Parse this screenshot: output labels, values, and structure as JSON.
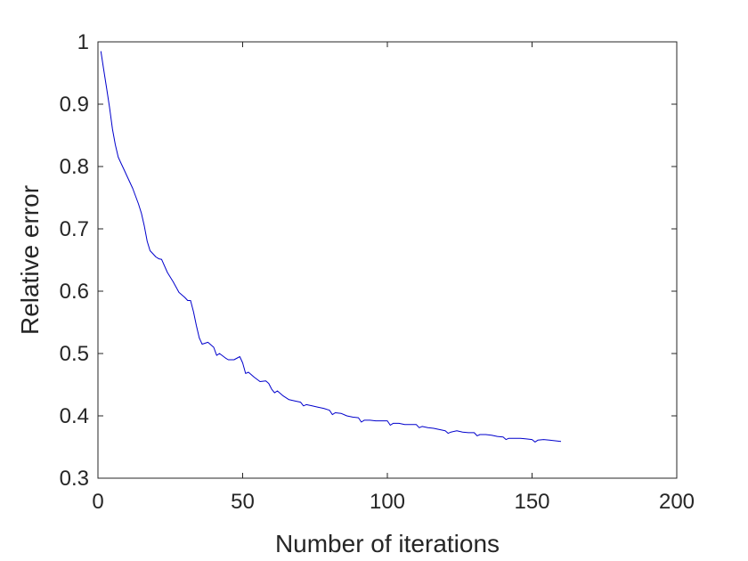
{
  "chart_data": {
    "type": "line",
    "title": "",
    "xlabel": "Number of iterations",
    "ylabel": "Relative error",
    "xlim": [
      0,
      200
    ],
    "ylim": [
      0.3,
      1
    ],
    "xticks": [
      "0",
      "50",
      "100",
      "150",
      "200"
    ],
    "yticks": [
      "0.3",
      "0.4",
      "0.5",
      "0.6",
      "0.7",
      "0.8",
      "0.9",
      "1"
    ],
    "grid": false,
    "legend": "none",
    "line_color": "#0000cc",
    "series": [
      {
        "x": [
          1,
          2,
          3,
          4,
          5,
          6,
          7,
          8,
          9,
          10,
          12,
          14,
          15,
          16,
          17,
          18,
          19,
          20,
          21,
          22,
          24,
          26,
          28,
          30,
          31,
          32,
          33,
          34,
          35,
          36,
          38,
          40,
          41,
          42,
          44,
          45,
          47,
          49,
          50,
          51,
          52,
          54,
          56,
          58,
          59,
          60,
          61,
          62,
          64,
          66,
          68,
          70,
          71,
          72,
          74,
          76,
          78,
          80,
          81,
          82,
          84,
          86,
          88,
          90,
          91,
          92,
          94,
          96,
          98,
          100,
          101,
          102,
          104,
          106,
          108,
          110,
          111,
          112,
          114,
          116,
          118,
          120,
          121,
          122,
          124,
          126,
          128,
          130,
          131,
          132,
          134,
          136,
          138,
          140,
          141,
          142,
          144,
          146,
          148,
          150,
          151,
          152,
          154,
          156,
          158,
          160
        ],
        "values": [
          0.985,
          0.955,
          0.925,
          0.895,
          0.86,
          0.835,
          0.815,
          0.805,
          0.795,
          0.785,
          0.765,
          0.74,
          0.725,
          0.705,
          0.68,
          0.665,
          0.66,
          0.655,
          0.652,
          0.651,
          0.63,
          0.615,
          0.598,
          0.59,
          0.585,
          0.585,
          0.567,
          0.545,
          0.525,
          0.515,
          0.518,
          0.51,
          0.497,
          0.5,
          0.493,
          0.49,
          0.49,
          0.495,
          0.485,
          0.468,
          0.47,
          0.462,
          0.455,
          0.456,
          0.452,
          0.443,
          0.437,
          0.44,
          0.432,
          0.426,
          0.424,
          0.422,
          0.416,
          0.418,
          0.416,
          0.414,
          0.412,
          0.409,
          0.402,
          0.405,
          0.404,
          0.4,
          0.398,
          0.397,
          0.39,
          0.393,
          0.393,
          0.392,
          0.392,
          0.392,
          0.385,
          0.388,
          0.388,
          0.386,
          0.386,
          0.386,
          0.381,
          0.383,
          0.381,
          0.38,
          0.378,
          0.376,
          0.372,
          0.374,
          0.376,
          0.374,
          0.373,
          0.373,
          0.368,
          0.37,
          0.37,
          0.369,
          0.367,
          0.366,
          0.362,
          0.364,
          0.364,
          0.364,
          0.363,
          0.362,
          0.358,
          0.361,
          0.362,
          0.361,
          0.36,
          0.359
        ]
      }
    ]
  }
}
